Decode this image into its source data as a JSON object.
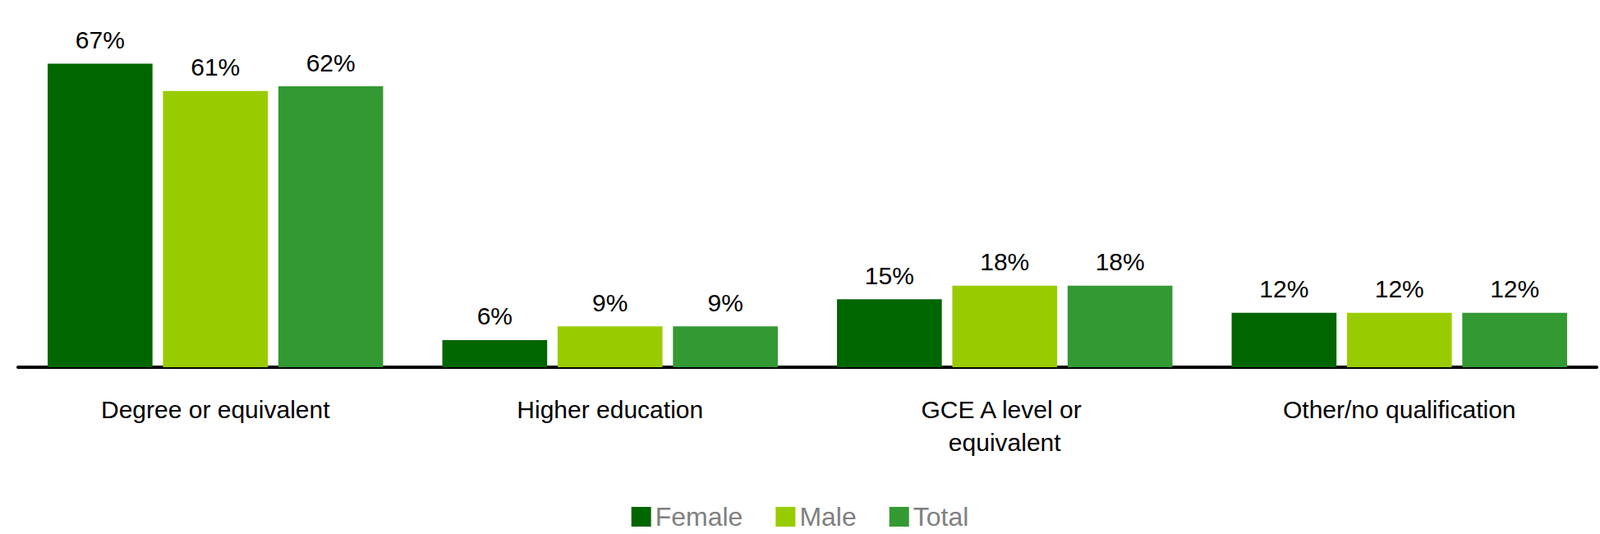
{
  "chart_data": {
    "type": "bar",
    "categories": [
      "Degree or equivalent",
      "Higher education",
      "GCE A level or equivalent",
      "Other/no qualification"
    ],
    "series": [
      {
        "name": "Female",
        "color": "#006600",
        "values": [
          67,
          6,
          15,
          12
        ],
        "value_labels": [
          "67%",
          "6%",
          "15%",
          "12%"
        ]
      },
      {
        "name": "Male",
        "color": "#99cc00",
        "values": [
          61,
          9,
          18,
          12
        ],
        "value_labels": [
          "61%",
          "9%",
          "18%",
          "12%"
        ]
      },
      {
        "name": "Total",
        "color": "#339933",
        "values": [
          62,
          9,
          18,
          12
        ],
        "value_labels": [
          "62%",
          "9%",
          "18%",
          "12%"
        ]
      }
    ],
    "ylim": [
      0,
      70
    ],
    "yticks": [
      0,
      70
    ],
    "grid": false,
    "legend": "bottom",
    "data_labels": true,
    "tick_labels": "x"
  }
}
